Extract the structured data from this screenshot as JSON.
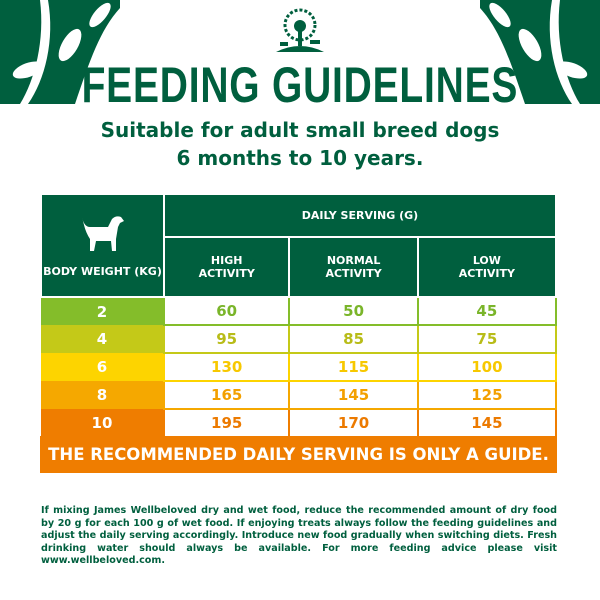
{
  "brand": {
    "logo": "james-wellbeloved-tree-logo"
  },
  "title": "FEEDING GUIDELINES",
  "subtitle": [
    "Suitable for adult small breed dogs",
    "6 months to 10 years."
  ],
  "table": {
    "body_weight_header": "BODY WEIGHT (KG)",
    "daily_serving_header": "DAILY SERVING (G)",
    "columns": [
      "HIGH ACTIVITY",
      "NORMAL ACTIVITY",
      "LOW ACTIVITY"
    ],
    "rows": [
      {
        "weight": "2",
        "values": [
          "60",
          "50",
          "45"
        ],
        "color": "#84bd2a",
        "text": "#7ab52a"
      },
      {
        "weight": "4",
        "values": [
          "95",
          "85",
          "75"
        ],
        "color": "#c4c918",
        "text": "#b8bc18"
      },
      {
        "weight": "6",
        "values": [
          "130",
          "115",
          "100"
        ],
        "color": "#fdd400",
        "text": "#f7c800"
      },
      {
        "weight": "8",
        "values": [
          "165",
          "145",
          "125"
        ],
        "color": "#f5a800",
        "text": "#f3a000"
      },
      {
        "weight": "10",
        "values": [
          "195",
          "170",
          "145"
        ],
        "color": "#ef7d00",
        "text": "#ec7a00"
      }
    ]
  },
  "footer_banner": "THE RECOMMENDED DAILY SERVING IS ONLY A GUIDE.",
  "note": "If mixing James Wellbeloved dry and wet food, reduce the recommended amount of dry food by 20 g for each 100 g of wet food. If enjoying treats always follow the feeding guidelines and adjust the daily serving accordingly. Introduce new food gradually when switching diets. Fresh drinking water should always be available. For more feeding advice please visit www.wellbeloved.com.",
  "colors": {
    "brand_green": "#005f3e",
    "banner_orange": "#ef7d00"
  }
}
